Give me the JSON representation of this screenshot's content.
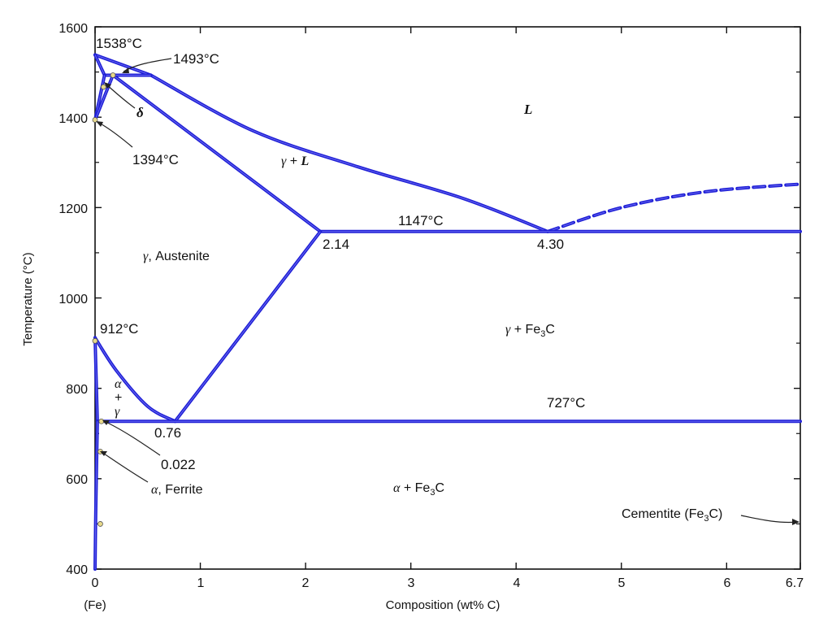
{
  "axes": {
    "x_label": "Composition (wt% C)",
    "y_label": "Temperature (°C)",
    "x_ticks": [
      "0",
      "1",
      "2",
      "3",
      "4",
      "5",
      "6",
      "6.7"
    ],
    "x_tick_values": [
      0,
      1,
      2,
      3,
      4,
      5,
      6,
      6.7
    ],
    "y_ticks": [
      "400",
      "600",
      "800",
      "1000",
      "1200",
      "1400",
      "1600"
    ],
    "y_tick_values": [
      400,
      600,
      800,
      1000,
      1200,
      1400,
      1600
    ],
    "fe_label": "(Fe)",
    "x_range": [
      0,
      6.7
    ],
    "y_range": [
      400,
      1600
    ]
  },
  "colors": {
    "phase_line": "#1f1fd6",
    "axis": "#111111",
    "marker": "#e8d98a"
  },
  "annotations": {
    "t1538": "1538°C",
    "t1493": "1493°C",
    "t1394": "1394°C",
    "t1147": "1147°C",
    "t912": "912°C",
    "t727": "727°C",
    "c214": "2.14",
    "c430": "4.30",
    "c076": "0.76",
    "c0022": "0.022",
    "cementite_pre": "Cementite (Fe",
    "cementite_sub": "3",
    "cementite_post": "C)"
  },
  "phases": {
    "liquid": "L",
    "delta": "δ",
    "gamma_liquid_g": "γ",
    "gamma_liquid_rest": " + ",
    "gamma_liquid_l": "L",
    "austenite_g": "γ",
    "austenite_rest": ", Austenite",
    "gamma_fe3c_g": "γ",
    "gamma_fe3c_mid": " + Fe",
    "gamma_fe3c_sub": "3",
    "gamma_fe3c_end": "C",
    "alpha_fe3c_a": "α",
    "alpha_fe3c_mid": " + Fe",
    "alpha_fe3c_sub": "3",
    "alpha_fe3c_end": "C",
    "ag_alpha": "α",
    "ag_plus": "+",
    "ag_gamma": "γ",
    "ferrite_a": "α",
    "ferrite_rest": ", Ferrite"
  },
  "chart_data": {
    "type": "phase-diagram",
    "xlabel": "Composition (wt% C)",
    "ylabel": "Temperature (°C)",
    "xlim": [
      0,
      6.7
    ],
    "ylim": [
      400,
      1600
    ],
    "boundaries": [
      {
        "name": "liquidus-delta",
        "points": [
          [
            0,
            1538
          ],
          [
            0.53,
            1493
          ]
        ]
      },
      {
        "name": "liquidus-gamma",
        "points": [
          [
            0.53,
            1493
          ],
          [
            1.5,
            1370
          ],
          [
            2.5,
            1290
          ],
          [
            3.5,
            1220
          ],
          [
            4.3,
            1147
          ]
        ]
      },
      {
        "name": "liquidus-cementite",
        "dashed": true,
        "points": [
          [
            4.3,
            1147
          ],
          [
            5.0,
            1200
          ],
          [
            5.8,
            1235
          ],
          [
            6.7,
            1252
          ]
        ]
      },
      {
        "name": "peritectic",
        "points": [
          [
            0.09,
            1493
          ],
          [
            0.53,
            1493
          ]
        ]
      },
      {
        "name": "delta-solidus",
        "points": [
          [
            0,
            1538
          ],
          [
            0.09,
            1493
          ]
        ]
      },
      {
        "name": "delta-gamma-upper",
        "points": [
          [
            0.09,
            1493
          ],
          [
            0,
            1394
          ]
        ]
      },
      {
        "name": "delta-gamma-lower",
        "points": [
          [
            0.17,
            1493
          ],
          [
            0,
            1394
          ]
        ]
      },
      {
        "name": "gamma-solidus",
        "points": [
          [
            0.17,
            1493
          ],
          [
            2.14,
            1147
          ]
        ]
      },
      {
        "name": "eutectic",
        "points": [
          [
            2.14,
            1147
          ],
          [
            6.7,
            1147
          ]
        ]
      },
      {
        "name": "acm",
        "points": [
          [
            0.76,
            727
          ],
          [
            2.14,
            1147
          ]
        ]
      },
      {
        "name": "a3",
        "points": [
          [
            0,
            912
          ],
          [
            0.2,
            840
          ],
          [
            0.5,
            760
          ],
          [
            0.76,
            727
          ]
        ]
      },
      {
        "name": "alpha-gamma",
        "points": [
          [
            0,
            912
          ],
          [
            0.022,
            727
          ]
        ]
      },
      {
        "name": "eutectoid",
        "points": [
          [
            0.022,
            727
          ],
          [
            6.7,
            727
          ]
        ]
      },
      {
        "name": "alpha-solvus",
        "points": [
          [
            0.022,
            727
          ],
          [
            0.012,
            600
          ],
          [
            0.005,
            500
          ],
          [
            0,
            400
          ]
        ]
      }
    ],
    "points": [
      {
        "label": "1538°C",
        "x": 0,
        "y": 1538
      },
      {
        "label": "1493°C",
        "x": 0.17,
        "y": 1493
      },
      {
        "label": "1394°C",
        "x": 0,
        "y": 1394
      },
      {
        "label": "1147°C",
        "x": 2.14,
        "y": 1147
      },
      {
        "label": "4.30",
        "x": 4.3,
        "y": 1147
      },
      {
        "label": "912°C",
        "x": 0,
        "y": 912
      },
      {
        "label": "727°C",
        "x": 0.76,
        "y": 727
      },
      {
        "label": "0.022",
        "x": 0.022,
        "y": 727
      }
    ]
  }
}
